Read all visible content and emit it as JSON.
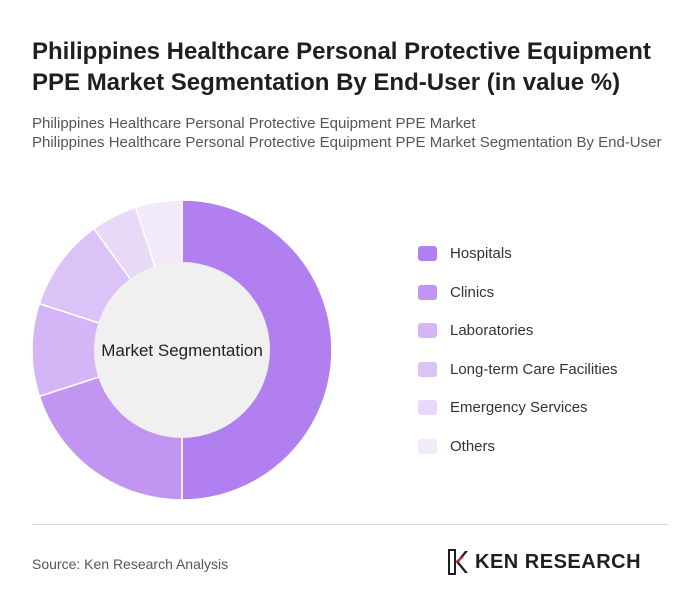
{
  "title": "Philippines Healthcare Personal Protective Equipment PPE Market Segmentation By End-User (in value %)",
  "subtitle_line1": "Philippines Healthcare Personal Protective Equipment PPE Market",
  "subtitle_line2": "Philippines Healthcare Personal Protective Equipment PPE Market Segmentation By End-User",
  "source": "Source: Ken Research Analysis",
  "brand": "KEN RESEARCH",
  "brand_icon": "ken-research-logo-icon",
  "chart_data": {
    "type": "pie",
    "donut": true,
    "center_label": "Market Segmentation",
    "legend_position": "right",
    "categories": [
      "Hospitals",
      "Clinics",
      "Laboratories",
      "Long-term Care Facilities",
      "Emergency Services",
      "Others"
    ],
    "values": [
      50,
      20,
      10,
      10,
      5,
      5
    ],
    "colors": [
      "#b17ff0",
      "#c196f2",
      "#d4b5f5",
      "#dcc3f7",
      "#e8d9f9",
      "#f2eafb"
    ]
  }
}
